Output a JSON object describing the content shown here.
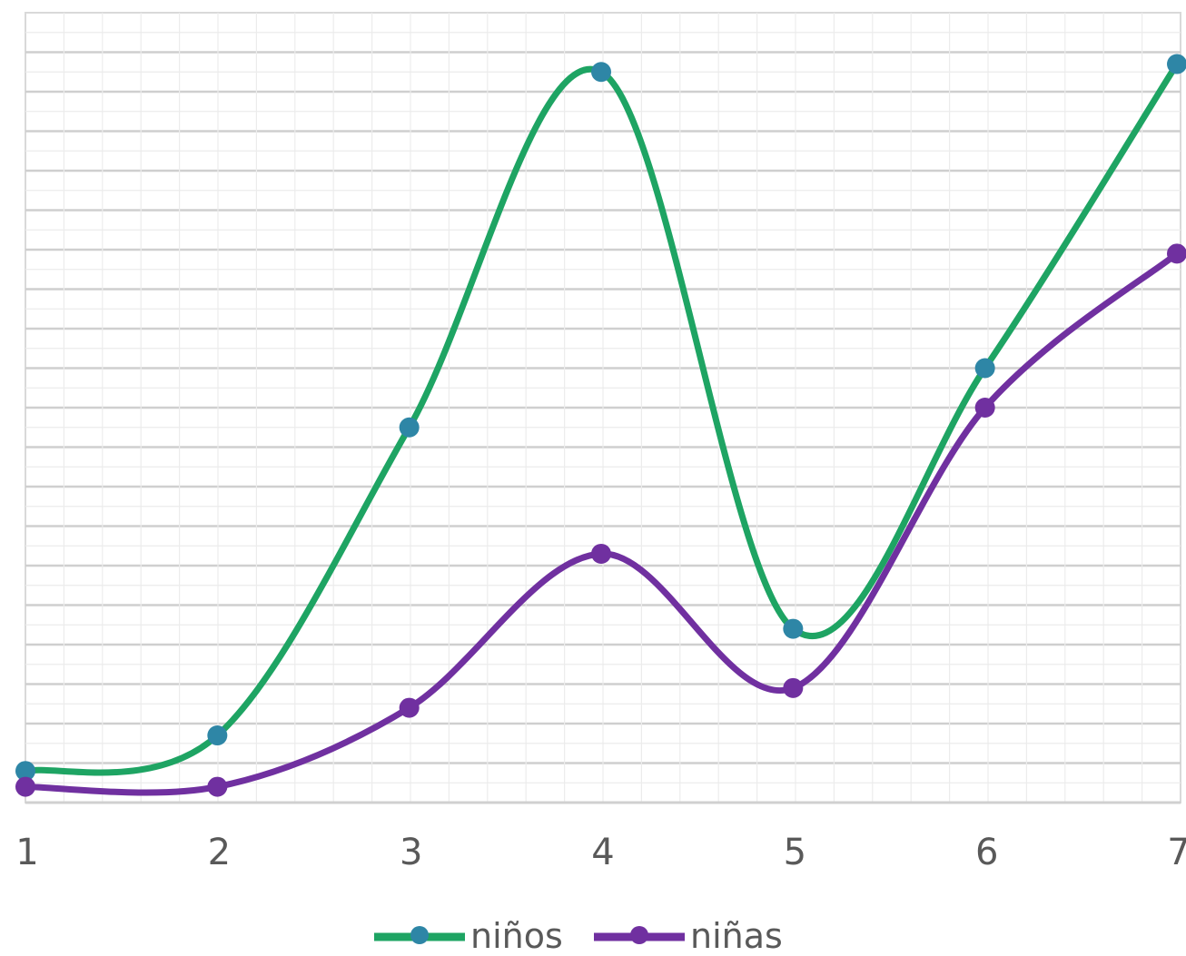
{
  "chart_data": {
    "type": "line",
    "smooth": true,
    "title": "",
    "xlabel": "",
    "ylabel": "",
    "x": [
      1,
      2,
      3,
      4,
      5,
      6,
      7
    ],
    "x_tick_labels": [
      "1",
      "2",
      "3",
      "4",
      "5",
      "6",
      "7"
    ],
    "series": [
      {
        "name": "niños",
        "color": "#1ea463",
        "marker_color": "#2e86a6",
        "values": [
          0.8,
          1.7,
          9.5,
          18.5,
          4.4,
          11.0,
          18.7
        ]
      },
      {
        "name": "niñas",
        "color": "#7030a0",
        "marker_color": "#7030a0",
        "values": [
          0.4,
          0.4,
          2.4,
          6.3,
          2.9,
          10.0,
          13.9
        ]
      }
    ],
    "ylim": [
      0,
      20
    ],
    "grid": true,
    "legend_position": "bottom"
  }
}
